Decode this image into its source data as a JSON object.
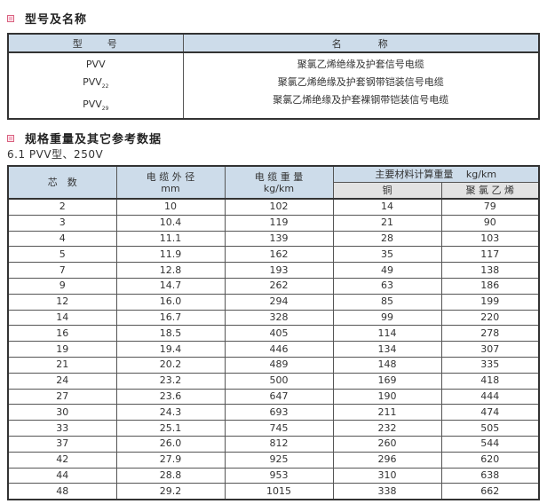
{
  "section1": {
    "title": "型号及名称"
  },
  "models_table": {
    "headers": [
      "型　　号",
      "名　　　称"
    ],
    "rows": [
      {
        "model": "PVV",
        "sub": "",
        "name": "聚氯乙烯绝缘及护套信号电缆"
      },
      {
        "model": "PVV",
        "sub": "22",
        "name": "聚氯乙烯绝缘及护套钢带铠装信号电缆"
      },
      {
        "model": "PVV",
        "sub": "29",
        "name": "聚氯乙烯绝缘及护套裸钢带铠装信号电缆"
      }
    ]
  },
  "section2": {
    "title": "规格重量及其它参考数据",
    "subtitle": "6.1  PVV型、250V"
  },
  "spec_table": {
    "headers": {
      "cores": "芯　数",
      "diameter": "电 缆 外 径",
      "diameter_unit": "mm",
      "weight": "电 缆 重 量",
      "weight_unit": "kg/km",
      "materials": "主要材料计算重量　 kg/km",
      "copper": "铜",
      "pvc": "聚 氯 乙 烯"
    },
    "rows": [
      [
        "2",
        "10",
        "102",
        "14",
        "79"
      ],
      [
        "3",
        "10.4",
        "119",
        "21",
        "90"
      ],
      [
        "4",
        "11.1",
        "139",
        "28",
        "103"
      ],
      [
        "5",
        "11.9",
        "162",
        "35",
        "117"
      ],
      [
        "7",
        "12.8",
        "193",
        "49",
        "138"
      ],
      [
        "9",
        "14.7",
        "262",
        "63",
        "186"
      ],
      [
        "12",
        "16.0",
        "294",
        "85",
        "199"
      ],
      [
        "14",
        "16.7",
        "328",
        "99",
        "220"
      ],
      [
        "16",
        "18.5",
        "405",
        "114",
        "278"
      ],
      [
        "19",
        "19.4",
        "446",
        "134",
        "307"
      ],
      [
        "21",
        "20.2",
        "489",
        "148",
        "335"
      ],
      [
        "24",
        "23.2",
        "500",
        "169",
        "418"
      ],
      [
        "27",
        "23.6",
        "647",
        "190",
        "444"
      ],
      [
        "30",
        "24.3",
        "693",
        "211",
        "474"
      ],
      [
        "33",
        "25.1",
        "745",
        "232",
        "505"
      ],
      [
        "37",
        "26.0",
        "812",
        "260",
        "544"
      ],
      [
        "42",
        "27.9",
        "925",
        "296",
        "620"
      ],
      [
        "44",
        "28.8",
        "953",
        "310",
        "638"
      ],
      [
        "48",
        "29.2",
        "1015",
        "338",
        "662"
      ]
    ]
  }
}
